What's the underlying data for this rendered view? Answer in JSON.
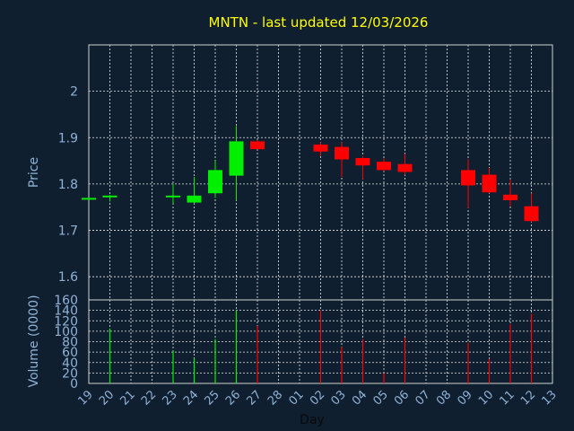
{
  "title": "MNTN - last updated 12/03/2026",
  "colors": {
    "up": "#00ee00",
    "down": "#ff0000",
    "background": "#0f1f30",
    "title": "#ffff00",
    "axis_text": "#8fb2d6"
  },
  "chart_data": [
    {
      "type": "candlestick",
      "ylabel": "Price",
      "ylim": [
        1.55,
        2.1
      ],
      "yticks": [
        1.6,
        1.7,
        1.8,
        1.9,
        2
      ],
      "grid": true,
      "dates": [
        "19",
        "20",
        "21",
        "22",
        "23",
        "24",
        "25",
        "26",
        "27",
        "28",
        "01",
        "02",
        "03",
        "04",
        "05",
        "06",
        "07",
        "08",
        "09",
        "10",
        "11",
        "12",
        "13"
      ],
      "ohlc": [
        {
          "d": "19",
          "o": 1.77,
          "h": 1.77,
          "l": 1.77,
          "c": 1.77
        },
        {
          "d": "20",
          "o": 1.772,
          "h": 1.776,
          "l": 1.762,
          "c": 1.775
        },
        {
          "d": "23",
          "o": 1.772,
          "h": 1.8,
          "l": 1.758,
          "c": 1.775
        },
        {
          "d": "24",
          "o": 1.76,
          "h": 1.815,
          "l": 1.758,
          "c": 1.775
        },
        {
          "d": "25",
          "o": 1.78,
          "h": 1.85,
          "l": 1.77,
          "c": 1.83
        },
        {
          "d": "26",
          "o": 1.818,
          "h": 1.925,
          "l": 1.765,
          "c": 1.892
        },
        {
          "d": "27",
          "o": 1.892,
          "h": 1.895,
          "l": 1.875,
          "c": 1.875
        },
        {
          "d": "02",
          "o": 1.885,
          "h": 1.89,
          "l": 1.86,
          "c": 1.87
        },
        {
          "d": "03",
          "o": 1.88,
          "h": 1.89,
          "l": 1.815,
          "c": 1.853
        },
        {
          "d": "04",
          "o": 1.856,
          "h": 1.86,
          "l": 1.81,
          "c": 1.84
        },
        {
          "d": "05",
          "o": 1.848,
          "h": 1.855,
          "l": 1.828,
          "c": 1.83
        },
        {
          "d": "06",
          "o": 1.843,
          "h": 1.865,
          "l": 1.82,
          "c": 1.826
        },
        {
          "d": "09",
          "o": 1.83,
          "h": 1.853,
          "l": 1.748,
          "c": 1.797
        },
        {
          "d": "10",
          "o": 1.82,
          "h": 1.835,
          "l": 1.78,
          "c": 1.782
        },
        {
          "d": "11",
          "o": 1.777,
          "h": 1.81,
          "l": 1.752,
          "c": 1.765
        },
        {
          "d": "12",
          "o": 1.752,
          "h": 1.78,
          "l": 1.718,
          "c": 1.72
        }
      ]
    },
    {
      "type": "bar",
      "xlabel": "Day",
      "ylabel": "Volume (0000)",
      "ylim": [
        0,
        160
      ],
      "yticks": [
        0,
        20,
        40,
        60,
        80,
        100,
        120,
        140,
        160
      ],
      "grid": true,
      "volumes": [
        {
          "d": "20",
          "v": 105,
          "dir": "up"
        },
        {
          "d": "23",
          "v": 62,
          "dir": "up"
        },
        {
          "d": "24",
          "v": 48,
          "dir": "up"
        },
        {
          "d": "25",
          "v": 85,
          "dir": "up"
        },
        {
          "d": "26",
          "v": 140,
          "dir": "up"
        },
        {
          "d": "27",
          "v": 110,
          "dir": "down"
        },
        {
          "d": "02",
          "v": 140,
          "dir": "down"
        },
        {
          "d": "03",
          "v": 70,
          "dir": "down"
        },
        {
          "d": "04",
          "v": 85,
          "dir": "down"
        },
        {
          "d": "05",
          "v": 20,
          "dir": "down"
        },
        {
          "d": "06",
          "v": 88,
          "dir": "down"
        },
        {
          "d": "09",
          "v": 78,
          "dir": "down"
        },
        {
          "d": "10",
          "v": 47,
          "dir": "down"
        },
        {
          "d": "11",
          "v": 113,
          "dir": "down"
        },
        {
          "d": "12",
          "v": 133,
          "dir": "down"
        }
      ]
    }
  ]
}
